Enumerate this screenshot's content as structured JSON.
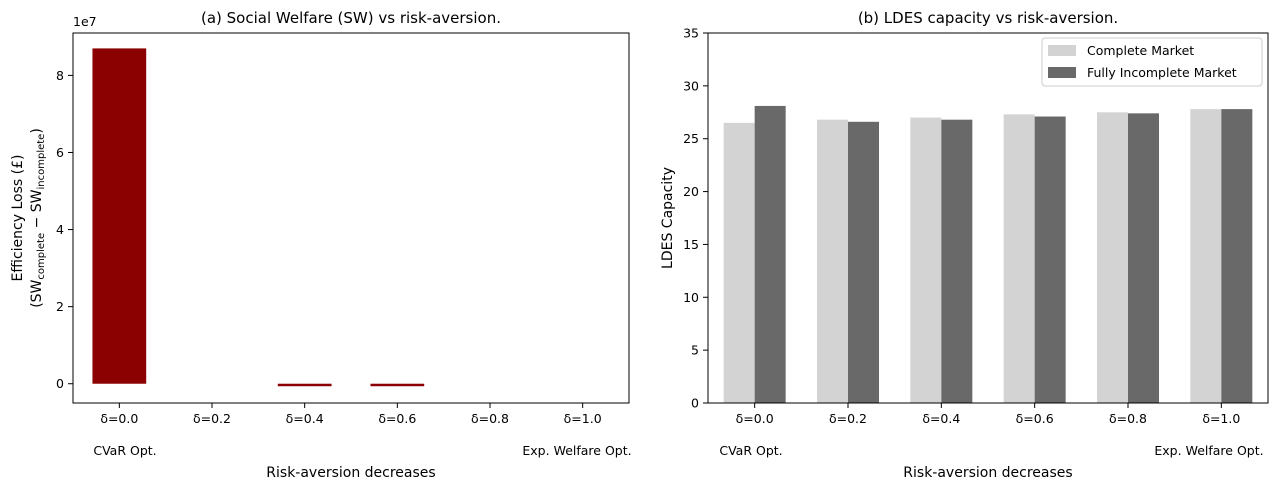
{
  "chart_data": [
    {
      "type": "bar",
      "title": "(a) Social Welfare (SW) vs risk-aversion.",
      "categories": [
        "δ=0.0",
        "δ=0.2",
        "δ=0.4",
        "δ=0.6",
        "δ=0.8",
        "δ=1.0"
      ],
      "values": [
        87000000,
        0,
        -600000,
        -600000,
        0,
        0
      ],
      "bar_color": "#8b0000",
      "ylabel_line1": "Efficiency Loss (£)",
      "ylabel_open": "(SW",
      "ylabel_sub1": "complete",
      "ylabel_minus": " − SW",
      "ylabel_sub2": "incomplete",
      "ylabel_close": ")",
      "xlabel": "Risk-aversion decreases",
      "left_note": "CVaR Opt.",
      "right_note": "Exp. Welfare Opt.",
      "ylim": [
        -5000000,
        91000000
      ],
      "yticks": [
        0,
        20000000,
        40000000,
        60000000,
        80000000
      ],
      "ytick_labels": [
        "0",
        "2",
        "4",
        "6",
        "8"
      ],
      "offset_label": "1e7",
      "grid": false
    },
    {
      "type": "bar",
      "title": "(b) LDES capacity vs risk-aversion.",
      "categories": [
        "δ=0.0",
        "δ=0.2",
        "δ=0.4",
        "δ=0.6",
        "δ=0.8",
        "δ=1.0"
      ],
      "series": [
        {
          "name": "Complete Market",
          "values": [
            26.5,
            26.8,
            27.0,
            27.3,
            27.5,
            27.8
          ],
          "color": "#d3d3d3"
        },
        {
          "name": "Fully Incomplete Market",
          "values": [
            28.1,
            26.6,
            26.8,
            27.1,
            27.4,
            27.8
          ],
          "color": "#696969"
        }
      ],
      "ylabel": "LDES Capacity",
      "xlabel": "Risk-aversion decreases",
      "left_note": "CVaR Opt.",
      "right_note": "Exp. Welfare Opt.",
      "ylim": [
        0,
        35
      ],
      "yticks": [
        0,
        5,
        10,
        15,
        20,
        25,
        30,
        35
      ],
      "legend_position": "top-right",
      "grid": false
    }
  ]
}
